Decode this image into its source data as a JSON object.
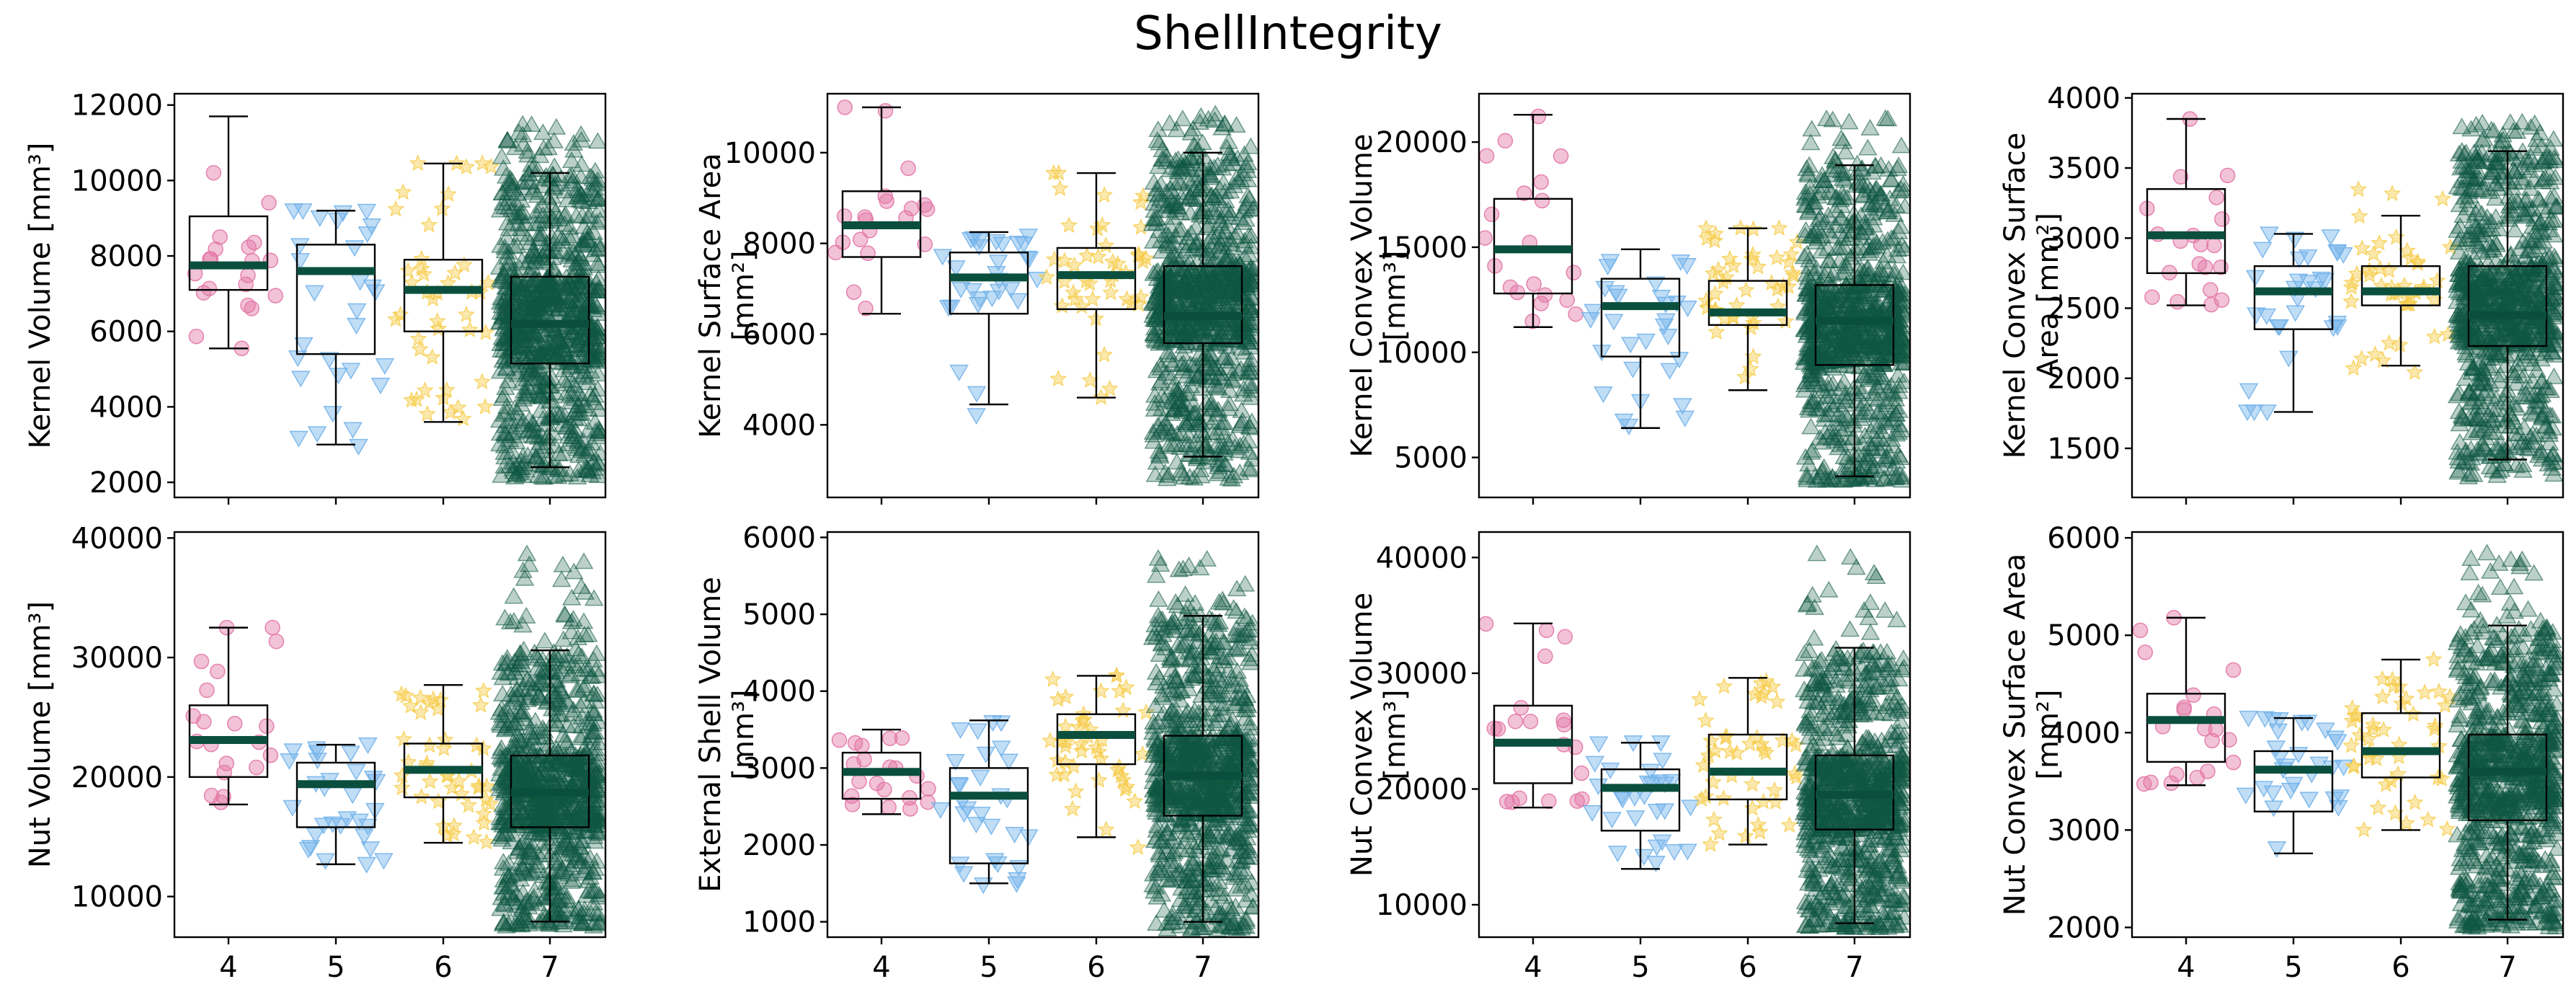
{
  "chart_data": {
    "type": "box",
    "title": "ShellIntegrity",
    "categories": [
      "4",
      "5",
      "6",
      "7"
    ],
    "colors": {
      "4": "#e377a6",
      "5": "#74b4ea",
      "6": "#f6cc4a",
      "7": "#0e5741",
      "median": "#0a4f3e"
    },
    "markers": {
      "4": "circle",
      "5": "triangle-down",
      "6": "star",
      "7": "triangle-up"
    },
    "point_counts": {
      "4": 20,
      "5": 30,
      "6": 45,
      "7": 900
    },
    "panels": [
      {
        "id": "kernel-volume",
        "ylabel": [
          "Kernel Volume [mm³]"
        ],
        "ylim": [
          1600,
          12300
        ],
        "yticks": [
          2000,
          4000,
          6000,
          8000,
          10000,
          12000
        ],
        "yticklabels": [
          "2000",
          "4000",
          "6000",
          "8000",
          "10000",
          "12000"
        ],
        "boxes": [
          {
            "cat": "4",
            "min": 5550,
            "q1": 7100,
            "median": 7750,
            "q3": 9050,
            "max": 11700,
            "pmin": 5550,
            "pmax": 11700
          },
          {
            "cat": "5",
            "min": 3000,
            "q1": 5400,
            "median": 7600,
            "q3": 8300,
            "max": 9200,
            "pmin": 2900,
            "pmax": 9200
          },
          {
            "cat": "6",
            "min": 3600,
            "q1": 6000,
            "median": 7100,
            "q3": 7900,
            "max": 10450,
            "pmin": 3600,
            "pmax": 10450
          },
          {
            "cat": "7",
            "min": 2400,
            "q1": 5150,
            "median": 6200,
            "q3": 7450,
            "max": 10200,
            "pmin": 2100,
            "pmax": 11500
          }
        ]
      },
      {
        "id": "kernel-surface-area",
        "ylabel": [
          "Kernel Surface Area",
          "[mm²]"
        ],
        "ylim": [
          2400,
          11300
        ],
        "yticks": [
          4000,
          6000,
          8000,
          10000
        ],
        "yticklabels": [
          "4000",
          "6000",
          "8000",
          "10000"
        ],
        "boxes": [
          {
            "cat": "4",
            "min": 6450,
            "q1": 7700,
            "median": 8400,
            "q3": 9150,
            "max": 11000,
            "pmin": 6450,
            "pmax": 11000
          },
          {
            "cat": "5",
            "min": 4450,
            "q1": 6450,
            "median": 7250,
            "q3": 7800,
            "max": 8250,
            "pmin": 3800,
            "pmax": 8250
          },
          {
            "cat": "6",
            "min": 4600,
            "q1": 6550,
            "median": 7300,
            "q3": 7900,
            "max": 9550,
            "pmin": 4600,
            "pmax": 9550
          },
          {
            "cat": "7",
            "min": 3300,
            "q1": 5800,
            "median": 6400,
            "q3": 7500,
            "max": 10000,
            "pmin": 2800,
            "pmax": 10900
          }
        ]
      },
      {
        "id": "kernel-convex-volume",
        "ylabel": [
          "Kernel Convex Volume",
          "[mm³]"
        ],
        "ylim": [
          3100,
          22300
        ],
        "yticks": [
          5000,
          10000,
          15000,
          20000
        ],
        "yticklabels": [
          "5000",
          "10000",
          "15000",
          "20000"
        ],
        "boxes": [
          {
            "cat": "4",
            "min": 11200,
            "q1": 12800,
            "median": 14900,
            "q3": 17300,
            "max": 21300,
            "pmin": 11000,
            "pmax": 21300
          },
          {
            "cat": "5",
            "min": 6400,
            "q1": 9800,
            "median": 12200,
            "q3": 13500,
            "max": 14900,
            "pmin": 6200,
            "pmax": 14900
          },
          {
            "cat": "6",
            "min": 8200,
            "q1": 11300,
            "median": 11900,
            "q3": 13400,
            "max": 15900,
            "pmin": 8200,
            "pmax": 15900
          },
          {
            "cat": "7",
            "min": 4100,
            "q1": 9400,
            "median": 11500,
            "q3": 13200,
            "max": 18900,
            "pmin": 3900,
            "pmax": 21300
          }
        ]
      },
      {
        "id": "kernel-convex-surface-area",
        "ylabel": [
          "Kernel Convex Surface",
          "Area [mm²]"
        ],
        "ylim": [
          1150,
          4030
        ],
        "yticks": [
          1500,
          2000,
          2500,
          3000,
          3500,
          4000
        ],
        "yticklabels": [
          "1500",
          "2000",
          "2500",
          "3000",
          "3500",
          "4000"
        ],
        "boxes": [
          {
            "cat": "4",
            "min": 2520,
            "q1": 2750,
            "median": 3020,
            "q3": 3350,
            "max": 3850,
            "pmin": 2520,
            "pmax": 3850
          },
          {
            "cat": "5",
            "min": 1760,
            "q1": 2350,
            "median": 2620,
            "q3": 2800,
            "max": 3030,
            "pmin": 1760,
            "pmax": 3030
          },
          {
            "cat": "6",
            "min": 2090,
            "q1": 2520,
            "median": 2620,
            "q3": 2800,
            "max": 3160,
            "pmin": 2040,
            "pmax": 3400
          },
          {
            "cat": "7",
            "min": 1420,
            "q1": 2230,
            "median": 2450,
            "q3": 2800,
            "max": 3620,
            "pmin": 1290,
            "pmax": 3850
          }
        ]
      },
      {
        "id": "nut-volume",
        "ylabel": [
          "Nut Volume [mm³]"
        ],
        "ylim": [
          6600,
          40500
        ],
        "yticks": [
          10000,
          20000,
          30000,
          40000
        ],
        "yticklabels": [
          "10000",
          "20000",
          "30000",
          "40000"
        ],
        "boxes": [
          {
            "cat": "4",
            "min": 17700,
            "q1": 20000,
            "median": 23100,
            "q3": 26000,
            "max": 32500,
            "pmin": 17700,
            "pmax": 32500
          },
          {
            "cat": "5",
            "min": 12700,
            "q1": 15800,
            "median": 19400,
            "q3": 21200,
            "max": 22700,
            "pmin": 12700,
            "pmax": 22700
          },
          {
            "cat": "6",
            "min": 14500,
            "q1": 18300,
            "median": 20600,
            "q3": 22800,
            "max": 27700,
            "pmin": 14500,
            "pmax": 27700
          },
          {
            "cat": "7",
            "min": 7900,
            "q1": 15800,
            "median": 18700,
            "q3": 21800,
            "max": 30600,
            "pmin": 7500,
            "pmax": 38700
          }
        ]
      },
      {
        "id": "external-shell-volume",
        "ylabel": [
          "External Shell Volume",
          "[mm³]"
        ],
        "ylim": [
          800,
          6070
        ],
        "yticks": [
          1000,
          2000,
          3000,
          4000,
          5000,
          6000
        ],
        "yticklabels": [
          "1000",
          "2000",
          "3000",
          "4000",
          "5000",
          "6000"
        ],
        "boxes": [
          {
            "cat": "4",
            "min": 2400,
            "q1": 2600,
            "median": 2950,
            "q3": 3200,
            "max": 3500,
            "pmin": 2400,
            "pmax": 3500
          },
          {
            "cat": "5",
            "min": 1500,
            "q1": 1760,
            "median": 2640,
            "q3": 3000,
            "max": 3620,
            "pmin": 1480,
            "pmax": 3620
          },
          {
            "cat": "6",
            "min": 2100,
            "q1": 3050,
            "median": 3430,
            "q3": 3700,
            "max": 4200,
            "pmin": 1400,
            "pmax": 4200
          },
          {
            "cat": "7",
            "min": 1000,
            "q1": 2380,
            "median": 2900,
            "q3": 3420,
            "max": 4980,
            "pmin": 900,
            "pmax": 5850
          }
        ]
      },
      {
        "id": "nut-convex-volume",
        "ylabel": [
          "Nut Convex Volume",
          "[mm³]"
        ],
        "ylim": [
          7200,
          42200
        ],
        "yticks": [
          10000,
          20000,
          30000,
          40000
        ],
        "yticklabels": [
          "10000",
          "20000",
          "30000",
          "40000"
        ],
        "boxes": [
          {
            "cat": "4",
            "min": 18400,
            "q1": 20500,
            "median": 24000,
            "q3": 27200,
            "max": 34300,
            "pmin": 18400,
            "pmax": 34300
          },
          {
            "cat": "5",
            "min": 13100,
            "q1": 16400,
            "median": 20100,
            "q3": 21700,
            "max": 24000,
            "pmin": 13100,
            "pmax": 24000
          },
          {
            "cat": "6",
            "min": 15200,
            "q1": 19100,
            "median": 21500,
            "q3": 24700,
            "max": 29600,
            "pmin": 15200,
            "pmax": 29600
          },
          {
            "cat": "7",
            "min": 8400,
            "q1": 16500,
            "median": 19500,
            "q3": 22900,
            "max": 32200,
            "pmin": 8000,
            "pmax": 40600
          }
        ]
      },
      {
        "id": "nut-convex-surface-area",
        "ylabel": [
          "Nut Convex Surface Area",
          "[mm²]"
        ],
        "ylim": [
          1900,
          6060
        ],
        "yticks": [
          2000,
          3000,
          4000,
          5000,
          6000
        ],
        "yticklabels": [
          "2000",
          "3000",
          "4000",
          "5000",
          "6000"
        ],
        "boxes": [
          {
            "cat": "4",
            "min": 3460,
            "q1": 3700,
            "median": 4130,
            "q3": 4400,
            "max": 5180,
            "pmin": 3460,
            "pmax": 5180
          },
          {
            "cat": "5",
            "min": 2760,
            "q1": 3190,
            "median": 3620,
            "q3": 3810,
            "max": 4150,
            "pmin": 2760,
            "pmax": 4150
          },
          {
            "cat": "6",
            "min": 3000,
            "q1": 3540,
            "median": 3810,
            "q3": 4200,
            "max": 4750,
            "pmin": 3000,
            "pmax": 4750
          },
          {
            "cat": "7",
            "min": 2080,
            "q1": 3100,
            "median": 3600,
            "q3": 3980,
            "max": 5100,
            "pmin": 2000,
            "pmax": 5850
          }
        ]
      }
    ]
  }
}
